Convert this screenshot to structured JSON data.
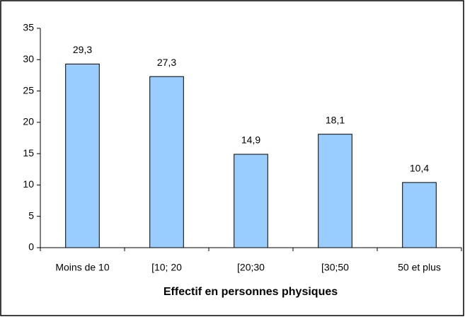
{
  "chart_data": {
    "type": "bar",
    "x_label": "Effectif en personnes physiques",
    "categories": [
      "Moins de 10",
      "[10; 20",
      "[20;30",
      "[30;50",
      "50 et plus"
    ],
    "values": [
      29.3,
      27.3,
      14.9,
      18.1,
      10.4
    ],
    "value_labels": [
      "29,3",
      "27,3",
      "14,9",
      "18,1",
      "10,4"
    ],
    "color": "#99ccff",
    "ylim": [
      0,
      35
    ],
    "yticks": [
      0,
      5,
      10,
      15,
      20,
      25,
      30,
      35
    ],
    "grid": false
  }
}
